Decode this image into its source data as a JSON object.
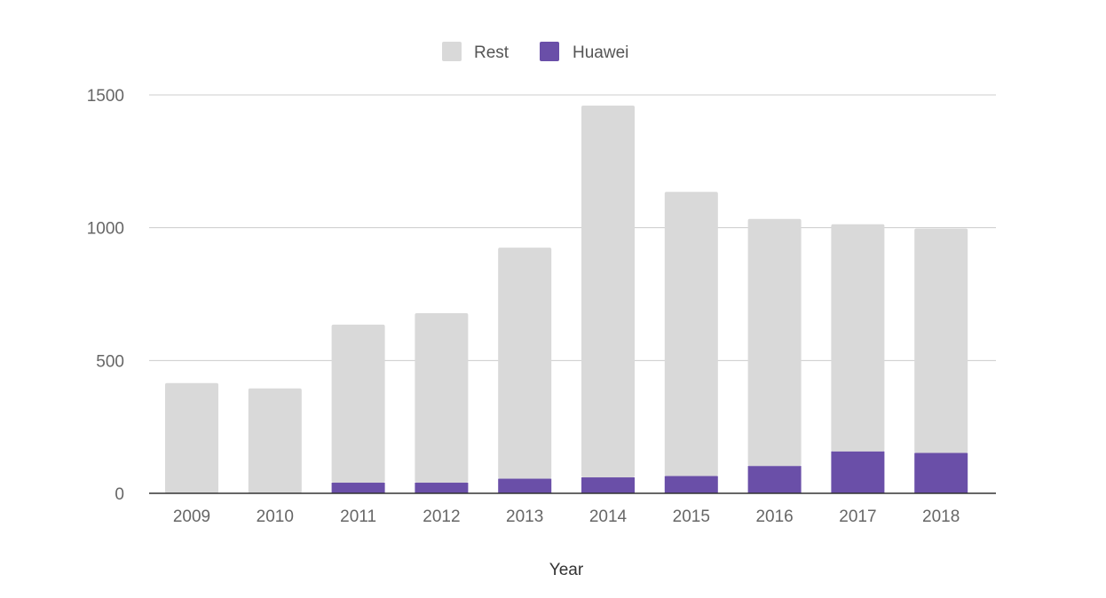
{
  "chart_data": {
    "type": "bar",
    "stacked": true,
    "title": "",
    "xlabel": "Year",
    "ylabel": "",
    "ylim": [
      0,
      1500
    ],
    "yticks": [
      0,
      500,
      1000,
      1500
    ],
    "grid": true,
    "legend_position": "top-center",
    "categories": [
      "2009",
      "2010",
      "2011",
      "2012",
      "2013",
      "2014",
      "2015",
      "2016",
      "2017",
      "2018"
    ],
    "series": [
      {
        "name": "Rest",
        "color": "#d9d9d9",
        "values": [
          415,
          395,
          595,
          638,
          870,
          1400,
          1070,
          930,
          855,
          845
        ]
      },
      {
        "name": "Huawei",
        "color": "#6a4fa8",
        "values": [
          0,
          0,
          40,
          40,
          55,
          60,
          65,
          103,
          158,
          152
        ]
      }
    ]
  }
}
